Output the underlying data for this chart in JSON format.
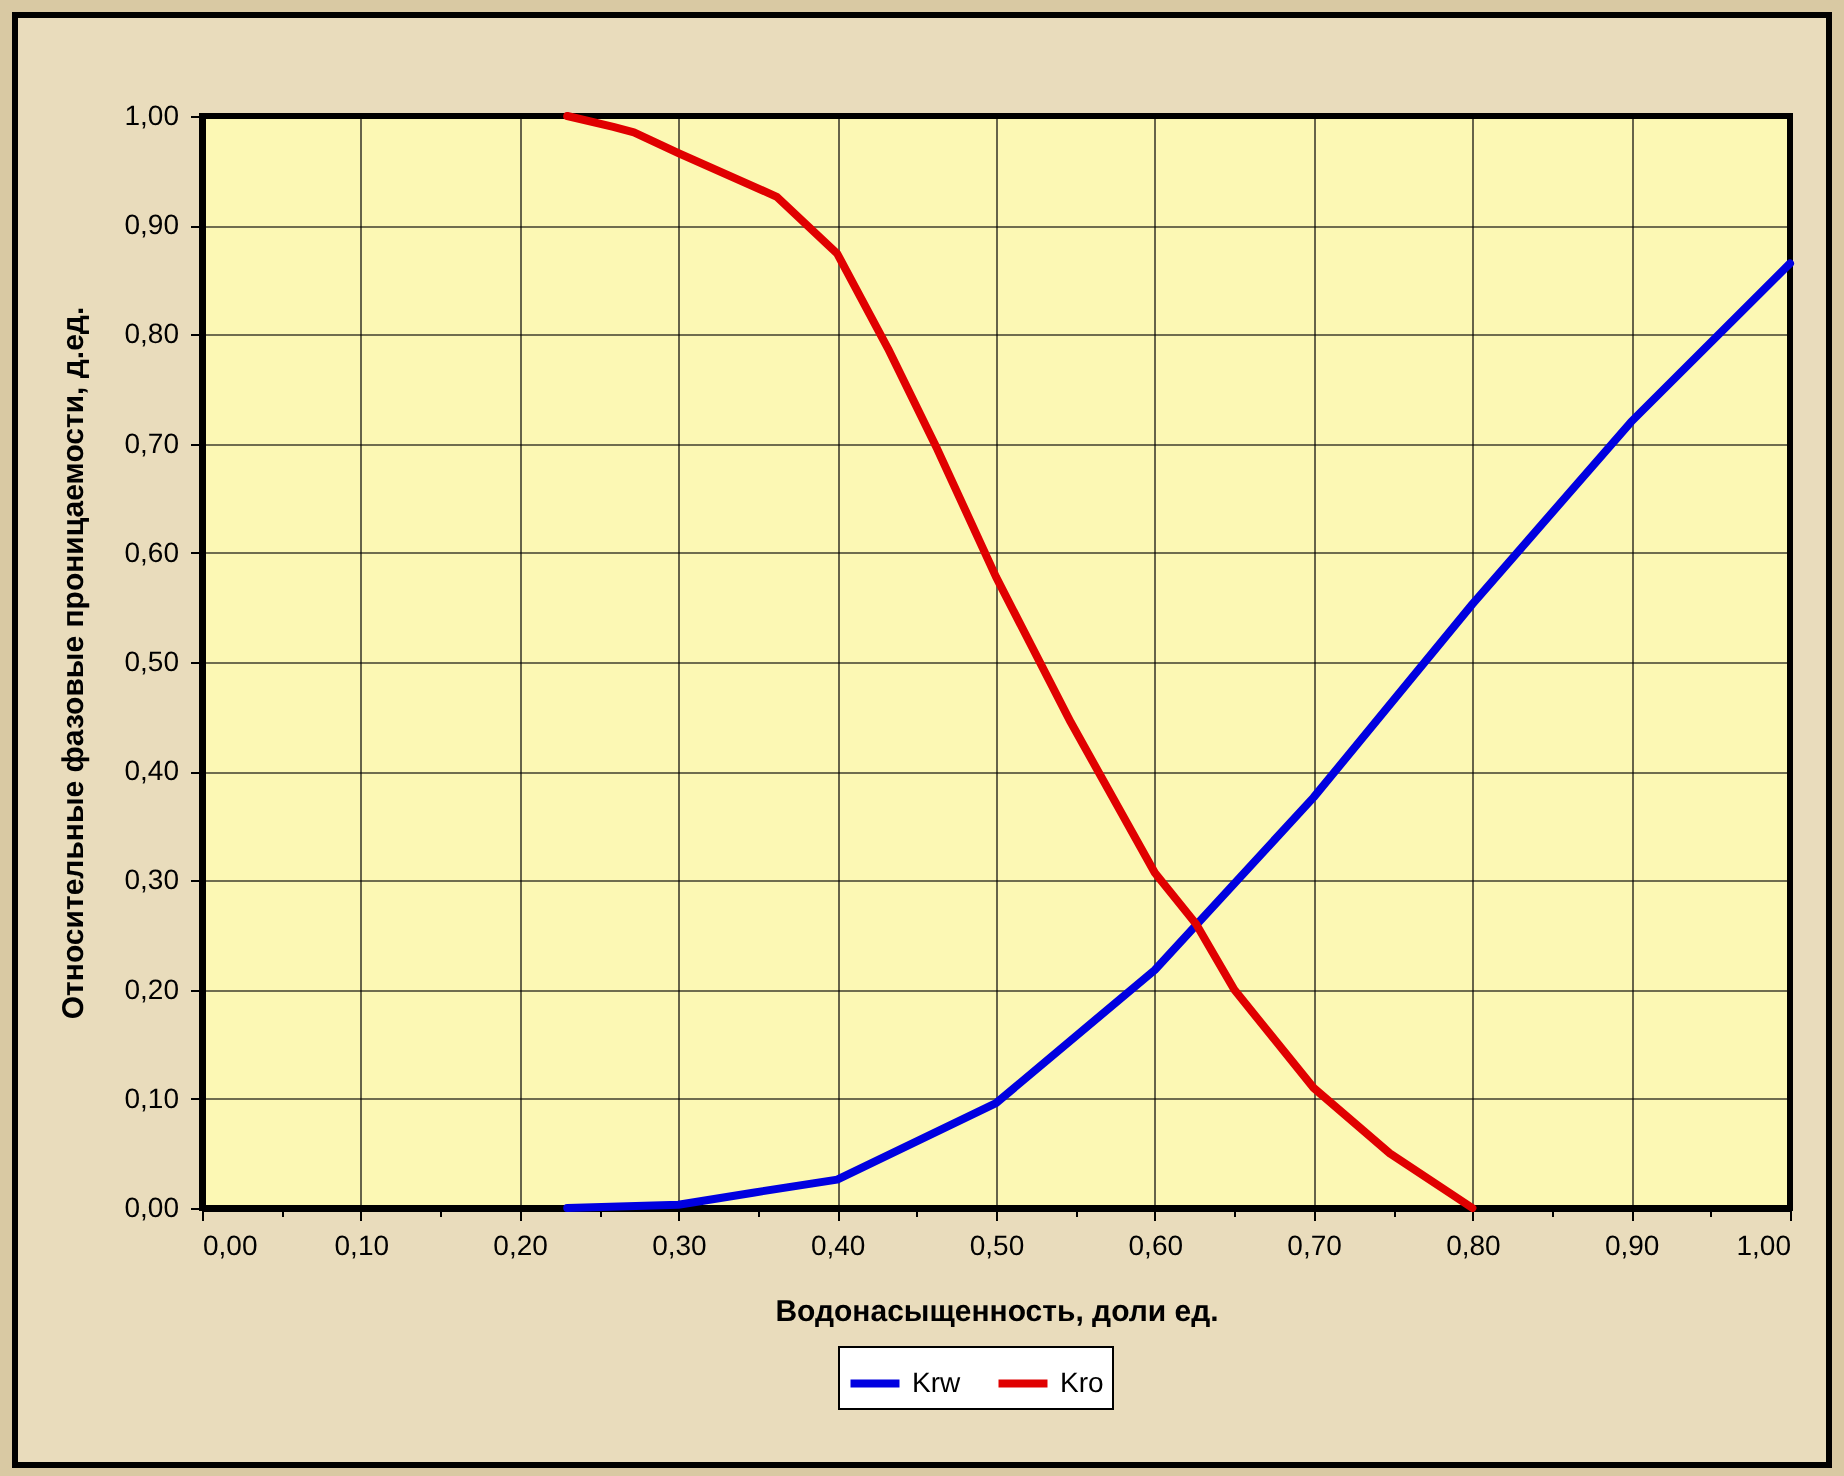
{
  "chart_data": {
    "type": "line",
    "xlabel": "Водонасыщенность, доли ед.",
    "ylabel": "Относительные фазовые проницаемости, д.ед.",
    "series": [
      {
        "name": "Krw",
        "color": "#0000e0",
        "x": [
          0.23,
          0.3,
          0.347,
          0.4,
          0.5,
          0.6,
          0.7,
          0.8,
          0.9,
          1.0
        ],
        "values": [
          0.0,
          0.003,
          0.014,
          0.026,
          0.096,
          0.218,
          0.376,
          0.553,
          0.72,
          0.865
        ]
      },
      {
        "name": "Kro",
        "color": "#e00000",
        "x": [
          0.23,
          0.259,
          0.272,
          0.3,
          0.362,
          0.4,
          0.432,
          0.463,
          0.5,
          0.547,
          0.6,
          0.626,
          0.65,
          0.7,
          0.748,
          0.8
        ],
        "values": [
          1.0,
          0.99,
          0.985,
          0.966,
          0.926,
          0.874,
          0.787,
          0.695,
          0.578,
          0.445,
          0.307,
          0.26,
          0.2,
          0.11,
          0.05,
          0.0
        ]
      }
    ],
    "xlim": [
      0,
      1
    ],
    "ylim": [
      0,
      1
    ],
    "xticks": [
      {
        "value": 0,
        "label": "0,00"
      },
      {
        "value": 0.05,
        "label": null
      },
      {
        "value": 0.1,
        "label": "0,10"
      },
      {
        "value": 0.15,
        "label": null
      },
      {
        "value": 0.2,
        "label": "0,20"
      },
      {
        "value": 0.25,
        "label": null
      },
      {
        "value": 0.3,
        "label": "0,30"
      },
      {
        "value": 0.35,
        "label": null
      },
      {
        "value": 0.4,
        "label": "0,40"
      },
      {
        "value": 0.45,
        "label": null
      },
      {
        "value": 0.5,
        "label": "0,50"
      },
      {
        "value": 0.55,
        "label": null
      },
      {
        "value": 0.6,
        "label": "0,60"
      },
      {
        "value": 0.65,
        "label": null
      },
      {
        "value": 0.7,
        "label": "0,70"
      },
      {
        "value": 0.75,
        "label": null
      },
      {
        "value": 0.8,
        "label": "0,80"
      },
      {
        "value": 0.85,
        "label": null
      },
      {
        "value": 0.9,
        "label": "0,90"
      },
      {
        "value": 0.95,
        "label": null
      },
      {
        "value": 1,
        "label": "1,00"
      }
    ],
    "yticks": [
      {
        "value": 0,
        "label": "0,00"
      },
      {
        "value": 0.1,
        "label": "0,10"
      },
      {
        "value": 0.2,
        "label": "0,20"
      },
      {
        "value": 0.3,
        "label": "0,30"
      },
      {
        "value": 0.4,
        "label": "0,40"
      },
      {
        "value": 0.5,
        "label": "0,50"
      },
      {
        "value": 0.6,
        "label": "0,60"
      },
      {
        "value": 0.7,
        "label": "0,70"
      },
      {
        "value": 0.8,
        "label": "0,80"
      },
      {
        "value": 0.9,
        "label": "0,90"
      },
      {
        "value": 1,
        "label": "1,00"
      }
    ],
    "grid": true,
    "legend": "bottom",
    "line_style": "solid"
  }
}
